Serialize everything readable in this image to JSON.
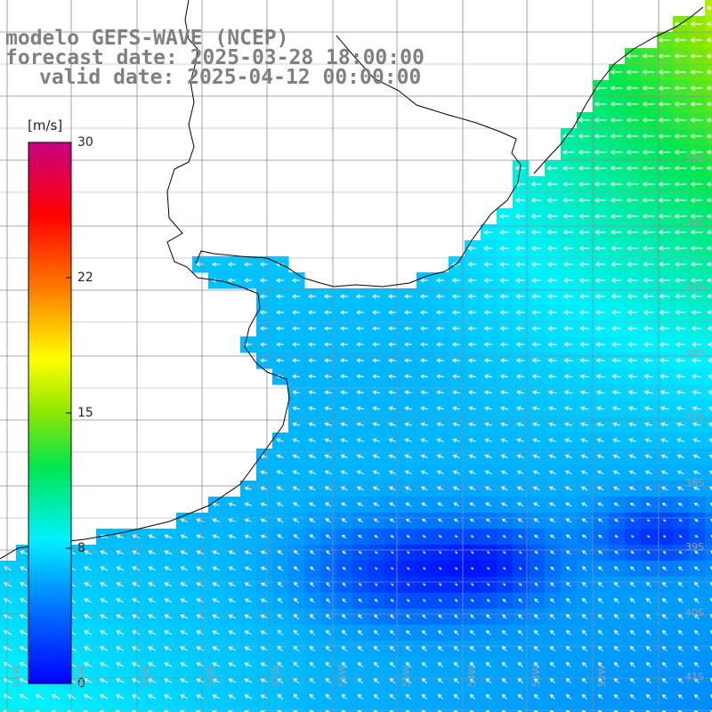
{
  "title": {
    "model": "modelo GEFS-WAVE (NCEP)",
    "forecast": "forecast date: 2025-03-28 18:00:00",
    "valid": "valid date: 2025-04-12 00:00:00"
  },
  "colorbar": {
    "unit": "[m/s]",
    "ticks": [
      {
        "label": "30",
        "value": 30
      },
      {
        "label": "22",
        "value": 22
      },
      {
        "label": "15",
        "value": 15
      },
      {
        "label": "8",
        "value": 8
      },
      {
        "label": "0",
        "value": 0
      }
    ]
  },
  "lat_labels": [
    "33S",
    "34S",
    "35S",
    "36S",
    "37S",
    "38S",
    "39S",
    "40S",
    "41S"
  ],
  "lon_labels": [
    "61W",
    "60W",
    "59W",
    "58W",
    "57W",
    "56W",
    "55W",
    "54W",
    "53W",
    "52W"
  ],
  "colors": {
    "ocean_low": "#0a2cf0",
    "ocean_mid": "#12b8f0",
    "ocean_high": "#20e070",
    "land": "#ffffff",
    "grid": "#8c8c8c"
  }
}
